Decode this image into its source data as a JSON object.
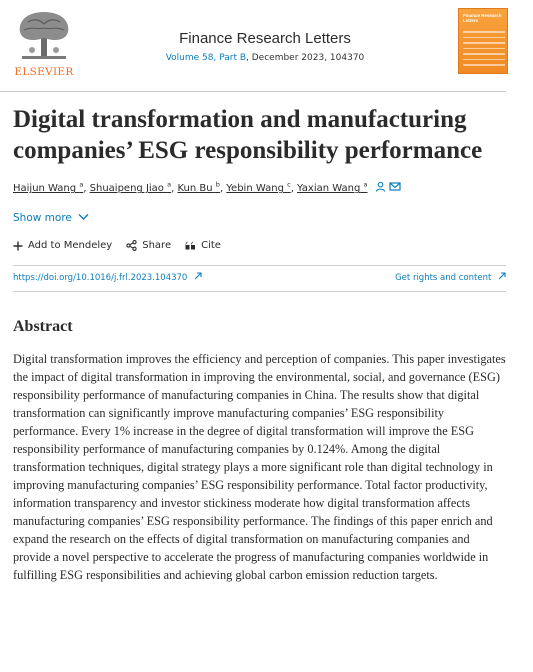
{
  "header": {
    "publisher": "ELSEVIER",
    "journal_title": "Finance Research Letters",
    "volume_link": "Volume 58, Part B",
    "meta_rest": ", December 2023, 104370",
    "cover_title": "Finance Research Letters"
  },
  "article": {
    "title": "Digital transformation and manufacturing companies’ ESG responsibility performance",
    "authors": [
      {
        "name": "Haijun Wang",
        "sup": "a"
      },
      {
        "name": "Shuaipeng Jiao",
        "sup": "a"
      },
      {
        "name": "Kun Bu",
        "sup": "b"
      },
      {
        "name": "Yebin Wang",
        "sup": "c"
      },
      {
        "name": "Yaxian Wang",
        "sup": "a"
      }
    ],
    "show_more": "Show more",
    "actions": {
      "mendeley": "Add to Mendeley",
      "share": "Share",
      "cite": "Cite"
    },
    "doi": "https://doi.org/10.1016/j.frl.2023.104370",
    "rights": "Get rights and content"
  },
  "abstract": {
    "heading": "Abstract",
    "text": "Digital transformation improves the efficiency and perception of companies. This paper investigates the impact of digital transformation in improving the environmental, social, and governance (ESG) responsibility performance of manufacturing companies in China. The results show that digital transformation can significantly improve manufacturing companies’ ESG responsibility performance. Every 1% increase in the degree of digital transformation will improve the ESG responsibility performance of manufacturing companies by 0.124%. Among the digital transformation techniques, digital strategy plays a more significant role than digital technology in improving manufacturing companies’ ESG responsibility performance. Total factor productivity, information transparency and investor stickiness moderate how digital transformation affects manufacturing companies’ ESG responsibility performance. The findings of this paper enrich and expand the research on the effects of digital transformation on manufacturing companies and provide a novel perspective to accelerate the progress of manufacturing companies worldwide in fulfilling ESG responsibilities and achieving global carbon emission reduction targets."
  },
  "colors": {
    "link": "#0c7dbb",
    "elsevier_orange": "#f26a21"
  }
}
